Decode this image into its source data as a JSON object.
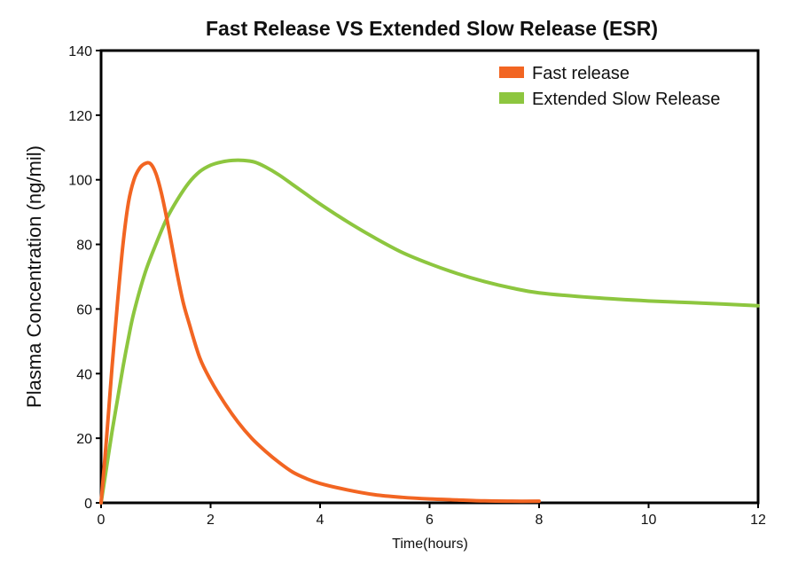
{
  "chart_data": {
    "type": "line",
    "title": "Fast Release VS Extended Slow Release (ESR)",
    "xlabel": "Time(hours)",
    "ylabel": "Plasma Concentration (ng/mil)",
    "xlim": [
      0,
      12
    ],
    "ylim": [
      0,
      140
    ],
    "xticks": [
      0,
      2,
      4,
      6,
      8,
      10,
      12
    ],
    "yticks": [
      0,
      20,
      40,
      60,
      80,
      100,
      120,
      140
    ],
    "grid": false,
    "legend_position": "top-right",
    "series": [
      {
        "name": "Fast release",
        "color": "#f26522",
        "x": [
          0,
          0.1,
          0.2,
          0.3,
          0.4,
          0.5,
          0.6,
          0.7,
          0.8,
          0.9,
          1.0,
          1.1,
          1.2,
          1.3,
          1.4,
          1.5,
          1.6,
          1.8,
          2.0,
          2.25,
          2.5,
          2.75,
          3.0,
          3.25,
          3.5,
          3.75,
          4.0,
          4.5,
          5.0,
          5.5,
          6.0,
          6.5,
          7.0,
          7.5,
          8.0
        ],
        "y": [
          0,
          20,
          42,
          62,
          80,
          93,
          100,
          103.5,
          105,
          105,
          102,
          96,
          88,
          79,
          70,
          62,
          56,
          45,
          38,
          31,
          25,
          20,
          16,
          12.5,
          9.5,
          7.5,
          6,
          4,
          2.5,
          1.7,
          1.2,
          0.9,
          0.6,
          0.5,
          0.5
        ]
      },
      {
        "name": "Extended Slow Release",
        "color": "#8dc63f",
        "x": [
          0,
          0.1,
          0.2,
          0.3,
          0.4,
          0.5,
          0.6,
          0.8,
          1.0,
          1.2,
          1.4,
          1.6,
          1.8,
          2.0,
          2.2,
          2.4,
          2.6,
          2.8,
          3.0,
          3.25,
          3.5,
          3.75,
          4.0,
          4.5,
          5.0,
          5.5,
          6.0,
          6.5,
          7.0,
          7.5,
          8.0,
          9.0,
          10.0,
          11.0,
          12.0
        ],
        "y": [
          0,
          11,
          22,
          32,
          42,
          51,
          59,
          71,
          80,
          88,
          94,
          99,
          102.5,
          104.5,
          105.5,
          106,
          106,
          105.5,
          104,
          101.5,
          98.5,
          95.5,
          92.5,
          87,
          82,
          77.5,
          74,
          71,
          68.5,
          66.5,
          65,
          63.5,
          62.5,
          61.8,
          61
        ]
      }
    ]
  }
}
